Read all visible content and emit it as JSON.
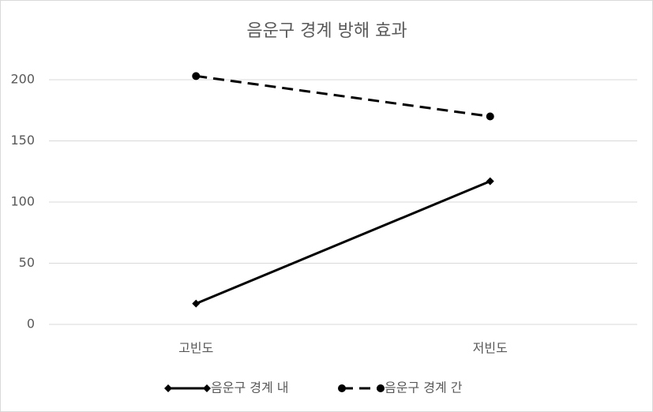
{
  "chart_data": {
    "type": "line",
    "title": "음운구 경계 방해 효과",
    "categories": [
      "고빈도",
      "저빈도"
    ],
    "series": [
      {
        "name": "음운구 경계 내",
        "color": "#000000",
        "values": [
          17,
          117
        ],
        "dashed": false,
        "marker": "diamond"
      },
      {
        "name": "음운구 경계 간",
        "color": "#000000",
        "values": [
          203,
          170
        ],
        "dashed": true,
        "marker": "circle"
      }
    ],
    "ylim": [
      0,
      200
    ],
    "yticks": [
      0,
      50,
      100,
      150,
      200
    ],
    "grid": true,
    "legend": "bottom"
  }
}
